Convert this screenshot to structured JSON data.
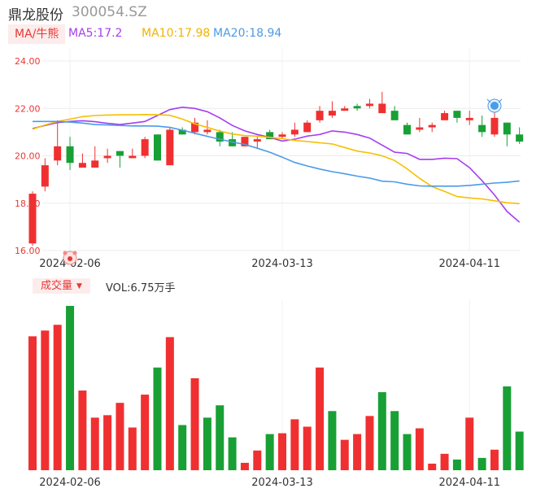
{
  "header": {
    "stock_name": "鼎龙股份",
    "stock_code": "300054.SZ"
  },
  "legend": {
    "ma_tag": "MA/牛熊",
    "ma5": "MA5:17.2",
    "ma10": "MA10:17.98",
    "ma20": "MA20:18.94",
    "volume_tag": "成交量",
    "volume_value": "VOL:6.75万手"
  },
  "colors": {
    "up": "#f03030",
    "down": "#18a035",
    "ma5": "#a63df0",
    "ma10": "#f5c000",
    "ma20": "#4b9be8",
    "axis_label": "#e53935"
  },
  "markers": [
    {
      "icon": "bear-face-icon",
      "index": 3
    },
    {
      "icon": "new-badge-icon",
      "index": 37
    }
  ],
  "chart_data": [
    {
      "type": "candlestick",
      "y_ticks": [
        "24.00",
        "22.00",
        "20.00",
        "18.00",
        "16.00"
      ],
      "ylim": [
        16,
        24
      ],
      "x_tick_labels": [
        {
          "index": 3,
          "label": "2024-02-06"
        },
        {
          "index": 20,
          "label": "2024-03-13"
        },
        {
          "index": 35,
          "label": "2024-04-11"
        }
      ],
      "grid": true,
      "candles": [
        {
          "o": 16.3,
          "h": 18.5,
          "l": 16.2,
          "c": 18.4
        },
        {
          "o": 18.7,
          "h": 19.9,
          "l": 18.5,
          "c": 19.6
        },
        {
          "o": 19.8,
          "h": 21.5,
          "l": 19.6,
          "c": 20.4
        },
        {
          "o": 20.4,
          "h": 20.8,
          "l": 19.4,
          "c": 19.7
        },
        {
          "o": 19.5,
          "h": 20.1,
          "l": 19.5,
          "c": 19.7
        },
        {
          "o": 19.5,
          "h": 20.4,
          "l": 19.5,
          "c": 19.8
        },
        {
          "o": 19.9,
          "h": 20.3,
          "l": 19.7,
          "c": 20.0
        },
        {
          "o": 20.2,
          "h": 20.2,
          "l": 19.5,
          "c": 20.0
        },
        {
          "o": 19.9,
          "h": 20.3,
          "l": 19.9,
          "c": 20.0
        },
        {
          "o": 20.0,
          "h": 20.8,
          "l": 19.9,
          "c": 20.7
        },
        {
          "o": 20.9,
          "h": 20.9,
          "l": 19.8,
          "c": 19.8
        },
        {
          "o": 19.6,
          "h": 21.2,
          "l": 19.6,
          "c": 21.1
        },
        {
          "o": 21.1,
          "h": 21.2,
          "l": 20.9,
          "c": 20.9
        },
        {
          "o": 21.0,
          "h": 21.6,
          "l": 20.9,
          "c": 21.4
        },
        {
          "o": 21.0,
          "h": 21.5,
          "l": 20.9,
          "c": 21.1
        },
        {
          "o": 21.0,
          "h": 21.1,
          "l": 20.4,
          "c": 20.6
        },
        {
          "o": 20.7,
          "h": 21.0,
          "l": 20.4,
          "c": 20.4
        },
        {
          "o": 20.4,
          "h": 20.8,
          "l": 20.4,
          "c": 20.8
        },
        {
          "o": 20.6,
          "h": 20.8,
          "l": 20.3,
          "c": 20.7
        },
        {
          "o": 21.0,
          "h": 21.1,
          "l": 20.7,
          "c": 20.7
        },
        {
          "o": 20.8,
          "h": 21.0,
          "l": 20.7,
          "c": 20.9
        },
        {
          "o": 20.9,
          "h": 21.4,
          "l": 20.8,
          "c": 21.1
        },
        {
          "o": 21.0,
          "h": 21.5,
          "l": 21.0,
          "c": 21.4
        },
        {
          "o": 21.5,
          "h": 22.1,
          "l": 21.4,
          "c": 21.9
        },
        {
          "o": 21.7,
          "h": 22.3,
          "l": 21.6,
          "c": 21.9
        },
        {
          "o": 21.9,
          "h": 22.1,
          "l": 21.9,
          "c": 22.0
        },
        {
          "o": 22.1,
          "h": 22.2,
          "l": 21.9,
          "c": 22.0
        },
        {
          "o": 22.1,
          "h": 22.4,
          "l": 22.0,
          "c": 22.2
        },
        {
          "o": 21.8,
          "h": 22.7,
          "l": 21.8,
          "c": 22.2
        },
        {
          "o": 21.9,
          "h": 22.1,
          "l": 21.5,
          "c": 21.5
        },
        {
          "o": 21.3,
          "h": 21.4,
          "l": 20.9,
          "c": 20.9
        },
        {
          "o": 21.1,
          "h": 21.6,
          "l": 21.0,
          "c": 21.2
        },
        {
          "o": 21.2,
          "h": 21.4,
          "l": 21.0,
          "c": 21.3
        },
        {
          "o": 21.5,
          "h": 21.9,
          "l": 21.5,
          "c": 21.8
        },
        {
          "o": 21.9,
          "h": 21.9,
          "l": 21.4,
          "c": 21.6
        },
        {
          "o": 21.5,
          "h": 21.9,
          "l": 21.3,
          "c": 21.6
        },
        {
          "o": 21.3,
          "h": 21.7,
          "l": 20.8,
          "c": 21.0
        },
        {
          "o": 20.9,
          "h": 21.9,
          "l": 20.8,
          "c": 21.6
        },
        {
          "o": 21.4,
          "h": 21.4,
          "l": 20.4,
          "c": 20.9
        },
        {
          "o": 20.9,
          "h": 21.2,
          "l": 20.5,
          "c": 20.6
        }
      ],
      "ma_lines": [
        {
          "key": "ma5",
          "values": [
            21.15,
            21.28,
            21.4,
            21.45,
            21.48,
            21.44,
            21.37,
            21.32,
            21.38,
            21.45,
            21.7,
            21.95,
            22.05,
            22.0,
            21.86,
            21.6,
            21.28,
            21.05,
            20.9,
            20.78,
            20.62,
            20.7,
            20.83,
            20.9,
            21.05,
            21.0,
            20.9,
            20.75,
            20.45,
            20.15,
            20.1,
            19.85,
            19.85,
            19.9,
            19.88,
            19.5,
            18.95,
            18.35,
            17.65,
            17.2
          ]
        },
        {
          "key": "ma10",
          "values": [
            21.12,
            21.3,
            21.45,
            21.55,
            21.65,
            21.7,
            21.72,
            21.73,
            21.73,
            21.74,
            21.73,
            21.71,
            21.55,
            21.35,
            21.2,
            21.04,
            20.92,
            20.85,
            20.83,
            20.78,
            20.72,
            20.65,
            20.6,
            20.55,
            20.5,
            20.35,
            20.2,
            20.12,
            20.0,
            19.8,
            19.45,
            19.05,
            18.7,
            18.5,
            18.28,
            18.22,
            18.18,
            18.1,
            18.02,
            17.98
          ]
        },
        {
          "key": "ma20",
          "values": [
            21.45,
            21.45,
            21.45,
            21.42,
            21.38,
            21.32,
            21.3,
            21.28,
            21.26,
            21.26,
            21.25,
            21.2,
            21.08,
            20.95,
            20.82,
            20.7,
            20.58,
            20.48,
            20.32,
            20.15,
            19.94,
            19.72,
            19.57,
            19.44,
            19.33,
            19.24,
            19.14,
            19.06,
            18.93,
            18.9,
            18.8,
            18.73,
            18.72,
            18.72,
            18.72,
            18.75,
            18.8,
            18.85,
            18.88,
            18.94
          ]
        }
      ]
    },
    {
      "type": "bar",
      "title": "成交量",
      "x_tick_labels": [
        {
          "index": 3,
          "label": "2024-02-06"
        },
        {
          "index": 20,
          "label": "2024-03-13"
        },
        {
          "index": 35,
          "label": "2024-04-11"
        }
      ],
      "ymax": 20.2,
      "values": [
        16.3,
        17.0,
        17.7,
        20.0,
        9.7,
        6.4,
        6.7,
        8.2,
        5.2,
        9.2,
        12.5,
        16.2,
        5.5,
        11.2,
        6.4,
        7.9,
        4.0,
        0.9,
        2.4,
        4.4,
        4.5,
        6.2,
        5.3,
        12.5,
        7.2,
        3.7,
        4.4,
        6.6,
        9.5,
        7.2,
        4.4,
        5.1,
        0.8,
        2.0,
        1.3,
        6.4,
        1.5,
        2.5,
        10.2,
        4.7
      ],
      "up": [
        true,
        true,
        true,
        false,
        true,
        true,
        true,
        true,
        true,
        true,
        false,
        true,
        false,
        true,
        false,
        false,
        false,
        true,
        true,
        false,
        true,
        true,
        true,
        true,
        false,
        true,
        true,
        true,
        false,
        false,
        false,
        true,
        true,
        true,
        false,
        true,
        false,
        true,
        false,
        false
      ]
    }
  ]
}
